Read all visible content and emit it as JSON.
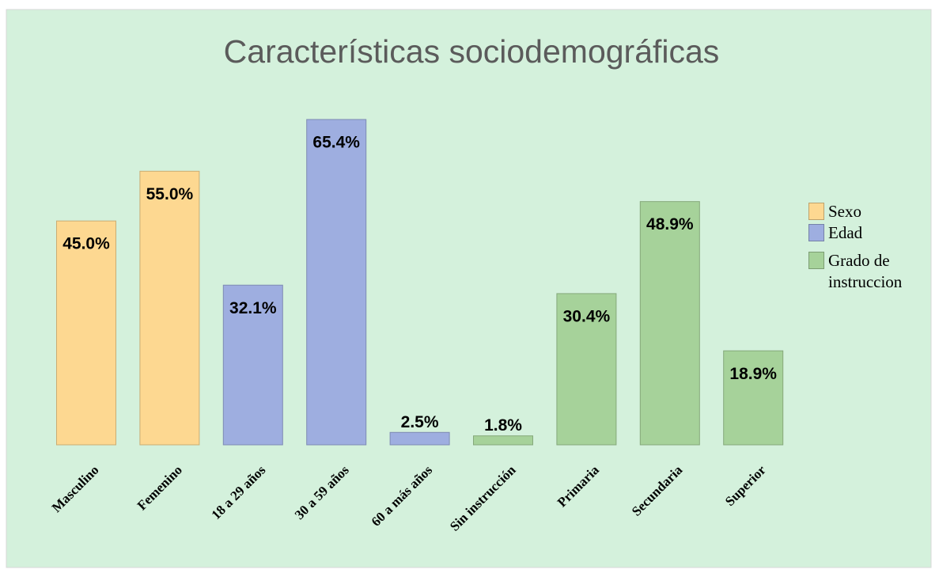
{
  "chart_data": {
    "type": "bar",
    "title": "Características sociodemográficas",
    "categories": [
      "Masculino",
      "Femenino",
      "18 a 29 años",
      "30 a 59 años",
      "60 a más años",
      "Sin instrucción",
      "Primaria",
      "Secundaria",
      "Superior"
    ],
    "values": [
      45.0,
      55.0,
      32.1,
      65.4,
      2.5,
      1.8,
      30.4,
      48.9,
      18.9
    ],
    "value_labels": [
      "45.0%",
      "55.0%",
      "32.1%",
      "65.4%",
      "2.5%",
      "1.8%",
      "30.4%",
      "48.9%",
      "18.9%"
    ],
    "colors": [
      "#fdd891",
      "#fdd891",
      "#9eaee0",
      "#9eaee0",
      "#9eaee0",
      "#a6d29a",
      "#a6d29a",
      "#a6d29a",
      "#a6d29a"
    ],
    "legend": [
      {
        "name": "Sexo",
        "color": "#fdd891"
      },
      {
        "name": "Edad",
        "color": "#9eaee0"
      },
      {
        "name": "Grado de instruccion",
        "color": "#a6d29a"
      }
    ]
  }
}
